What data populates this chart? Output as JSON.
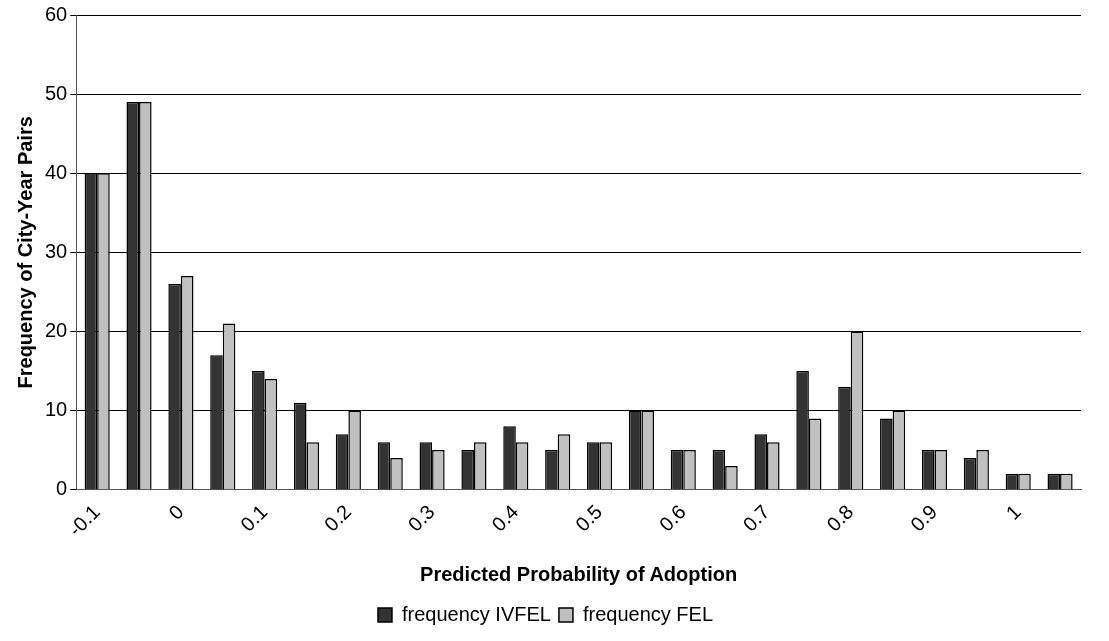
{
  "chart_data": {
    "type": "bar",
    "xlabel": "Predicted Probability of Adoption",
    "ylabel": "Frequency of City-Year Pairs",
    "categories": [
      "-0.1",
      null,
      "0",
      null,
      "0.1",
      null,
      "0.2",
      null,
      "0.3",
      null,
      "0.4",
      null,
      "0.5",
      null,
      "0.6",
      null,
      "0.7",
      null,
      "0.8",
      null,
      "0.9",
      null,
      "1",
      null
    ],
    "series": [
      {
        "name": "frequency IVFEL",
        "color": "#333333",
        "values": [
          40,
          49,
          26,
          17,
          15,
          11,
          7,
          6,
          6,
          5,
          8,
          5,
          6,
          10,
          5,
          5,
          7,
          15,
          13,
          9,
          5,
          4,
          2,
          2
        ]
      },
      {
        "name": "frequency FEL",
        "color": "#c0c0c0",
        "values": [
          40,
          49,
          27,
          21,
          14,
          6,
          10,
          4,
          5,
          6,
          6,
          7,
          6,
          10,
          5,
          3,
          6,
          9,
          20,
          10,
          5,
          5,
          2,
          2
        ]
      }
    ],
    "ylim": [
      0,
      60
    ],
    "yticks": [
      0,
      10,
      20,
      30,
      40,
      50,
      60
    ],
    "grid": "y",
    "legend": "bottom"
  }
}
